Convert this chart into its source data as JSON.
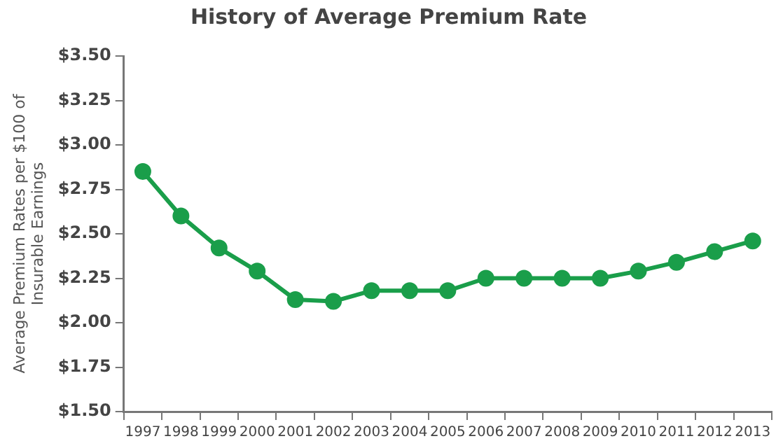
{
  "chart_data": {
    "type": "line",
    "title": "History of Average Premium Rate",
    "ylabel": "Average Premium Rates per $100 of Insurable Earnings",
    "categories": [
      "1997",
      "1998",
      "1999",
      "2000",
      "2001",
      "2002",
      "2003",
      "2004",
      "2005",
      "2006",
      "2007",
      "2008",
      "2009",
      "2010",
      "2011",
      "2012",
      "2013"
    ],
    "series": [
      {
        "color": "#1a9e4a",
        "values": [
          2.85,
          2.6,
          2.42,
          2.29,
          2.13,
          2.12,
          2.18,
          2.18,
          2.18,
          2.25,
          2.25,
          2.25,
          2.25,
          2.29,
          2.34,
          2.4,
          2.46
        ]
      }
    ],
    "ylim": [
      1.5,
      3.5
    ],
    "yticks": [
      {
        "value": 1.5,
        "label": "$1.50"
      },
      {
        "value": 1.75,
        "label": "$1.75"
      },
      {
        "value": 2,
        "label": "$2.00"
      },
      {
        "value": 2.25,
        "label": "$2.25"
      },
      {
        "value": 2.5,
        "label": "$2.50"
      },
      {
        "value": 2.75,
        "label": "$2.75"
      },
      {
        "value": 3,
        "label": "$3.00"
      },
      {
        "value": 3.25,
        "label": "$3.25"
      },
      {
        "value": 3.5,
        "label": "$3.50"
      }
    ],
    "grid": false,
    "legend": false,
    "marker": "circle",
    "line_style": "solid"
  }
}
